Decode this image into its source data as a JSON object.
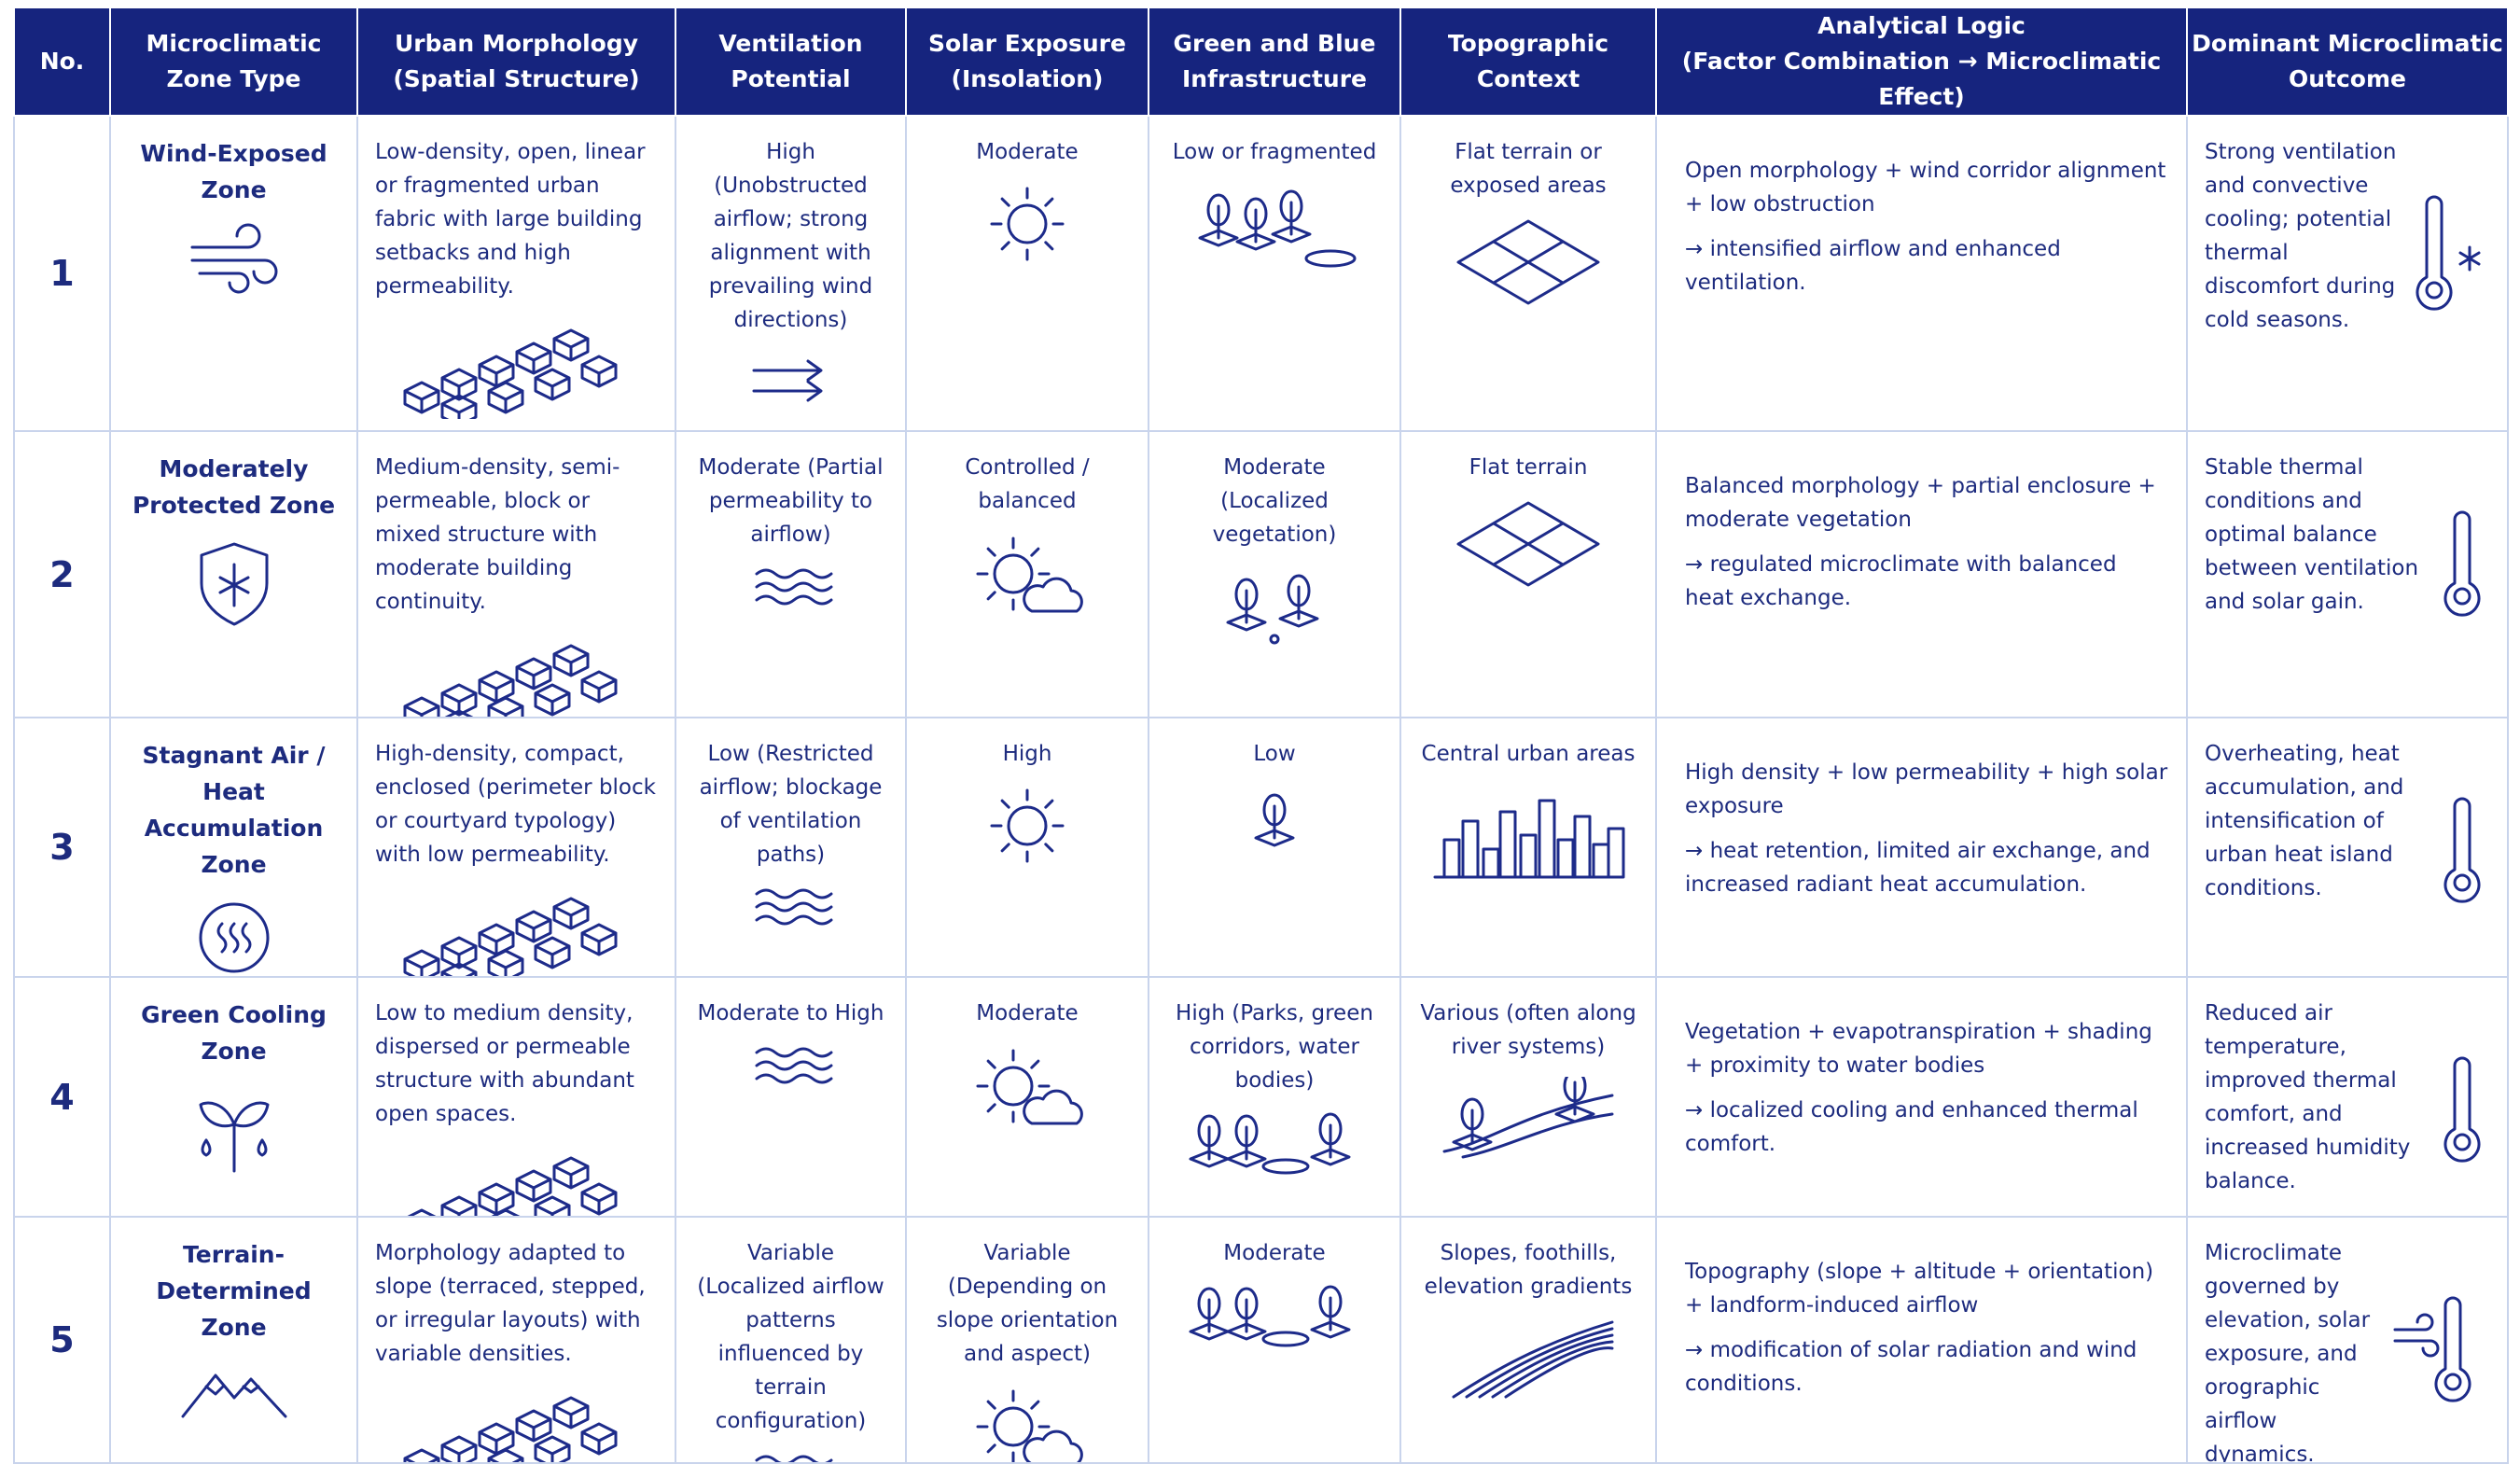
{
  "table": {
    "headers": [
      [
        "No."
      ],
      [
        "Microclimatic",
        "Zone Type"
      ],
      [
        "Urban Morphology",
        "(Spatial Structure)"
      ],
      [
        "Ventilation",
        "Potential"
      ],
      [
        "Solar Exposure",
        "(Insolation)"
      ],
      [
        "Green and Blue",
        "Infrastructure"
      ],
      [
        "Topographic",
        "Context"
      ],
      [
        "Analytical Logic",
        "(Factor Combination → Microclimatic Effect)"
      ],
      [
        "Dominant Microclimatic",
        "Outcome"
      ]
    ],
    "rows": [
      {
        "no": "1",
        "zone": "Wind-Exposed Zone",
        "morphology": "Low-density, open, linear or fragmented urban fabric with large building setbacks and high permeability.",
        "ventilation": "High (Unobstructed airflow; strong alignment with prevailing wind directions)",
        "solar": "Moderate",
        "green": "Low or fragmented",
        "topography": "Flat terrain or exposed areas",
        "logic": {
          "factors": "Open morphology + wind corridor alignment + low obstruction",
          "effect": "→ intensified airflow and enhanced ventilation."
        },
        "outcome": "Strong ventilation and convective cooling; potential thermal discomfort during cold seasons."
      },
      {
        "no": "2",
        "zone": "Moderately Protected Zone",
        "morphology": "Medium-density, semi-permeable, block or mixed structure with moderate building continuity.",
        "ventilation": "Moderate (Partial permeability to airflow)",
        "solar": "Controlled / balanced",
        "green": "Moderate (Localized vegetation)",
        "topography": "Flat terrain",
        "logic": {
          "factors": "Balanced morphology + partial enclosure + moderate vegetation",
          "effect": "→ regulated microclimate with balanced heat exchange."
        },
        "outcome": "Stable thermal conditions and optimal balance between ventilation and solar gain."
      },
      {
        "no": "3",
        "zone": "Stagnant Air / Heat Accumulation Zone",
        "morphology": "High-density, compact, enclosed (perimeter block or courtyard typology) with low permeability.",
        "ventilation": "Low (Restricted airflow; blockage of ventilation paths)",
        "solar": "High",
        "green": "Low",
        "topography": "Central urban areas",
        "logic": {
          "factors": "High density + low permeability + high solar exposure",
          "effect": "→ heat retention, limited air exchange, and increased radiant heat accumulation."
        },
        "outcome": "Overheating, heat accumulation, and intensification of urban heat island conditions."
      },
      {
        "no": "4",
        "zone": "Green Cooling Zone",
        "morphology": "Low to medium density, dispersed or permeable structure with abundant open spaces.",
        "ventilation": "Moderate to High",
        "solar": "Moderate",
        "green": "High (Parks, green corridors, water bodies)",
        "topography": "Various (often along river systems)",
        "logic": {
          "factors": "Vegetation + evapotranspiration + shading + proximity to water bodies",
          "effect": "→ localized cooling and enhanced thermal comfort."
        },
        "outcome": "Reduced air temperature, improved thermal comfort, and increased humidity balance."
      },
      {
        "no": "5",
        "zone": "Terrain-Determined Zone",
        "morphology": "Morphology adapted to slope (terraced, stepped, or irregular layouts) with variable densities.",
        "ventilation": "Variable (Localized airflow patterns influenced by terrain configuration)",
        "solar": "Variable (Depending on slope orientation and aspect)",
        "green": "Moderate",
        "topography": "Slopes, foothills, elevation gradients",
        "logic": {
          "factors": "Topography (slope + altitude + orientation) + landform-induced airflow",
          "effect": "→ modification of solar radiation and wind conditions."
        },
        "outcome": "Microclimate governed by elevation, solar exposure, and orographic airflow dynamics."
      }
    ]
  }
}
